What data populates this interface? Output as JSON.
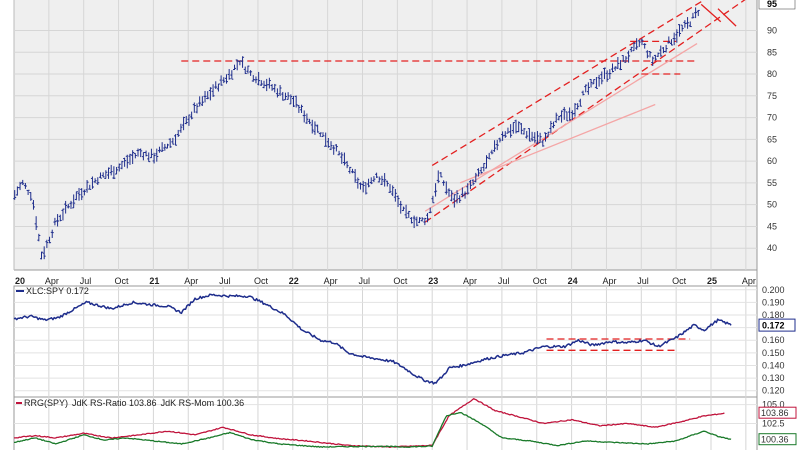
{
  "chart_data": [
    {
      "type": "ohlc",
      "panel": "price",
      "ylim": [
        35,
        97
      ],
      "y_ticks": [
        40,
        45,
        50,
        55,
        60,
        65,
        70,
        75,
        80,
        85,
        90
      ],
      "last_value_label": "95",
      "x_axis": {
        "labels": [
          "20",
          "Apr",
          "Jul",
          "Oct",
          "21",
          "Apr",
          "Jul",
          "Oct",
          "22",
          "Apr",
          "Jul",
          "Oct",
          "23",
          "Apr",
          "Jul",
          "Oct",
          "24",
          "Apr",
          "Jul",
          "Oct",
          "25",
          "Apr"
        ],
        "positions": [
          2020.0,
          2020.25,
          2020.5,
          2020.75,
          2021.0,
          2021.25,
          2021.5,
          2021.75,
          2022.0,
          2022.25,
          2022.5,
          2022.75,
          2023.0,
          2023.25,
          2023.5,
          2023.75,
          2024.0,
          2024.25,
          2024.5,
          2024.75,
          2025.0,
          2025.25
        ],
        "bold": [
          "20",
          "21",
          "22",
          "23",
          "24",
          "25"
        ],
        "range": [
          2020.0,
          2025.33
        ]
      },
      "series": [
        {
          "kind": "price",
          "color": "#1e2d8c",
          "points": [
            [
              2020.0,
              52.0
            ],
            [
              2020.06,
              55.0
            ],
            [
              2020.13,
              52.0
            ],
            [
              2020.2,
              38.0
            ],
            [
              2020.3,
              46.0
            ],
            [
              2020.45,
              52.0
            ],
            [
              2020.6,
              56.0
            ],
            [
              2020.75,
              58.5
            ],
            [
              2020.9,
              62.0
            ],
            [
              2021.0,
              61.0
            ],
            [
              2021.15,
              65.0
            ],
            [
              2021.3,
              72.0
            ],
            [
              2021.45,
              77.0
            ],
            [
              2021.55,
              80.0
            ],
            [
              2021.62,
              83.0
            ],
            [
              2021.7,
              80.0
            ],
            [
              2021.85,
              77.0
            ],
            [
              2022.0,
              74.0
            ],
            [
              2022.1,
              70.0
            ],
            [
              2022.2,
              66.5
            ],
            [
              2022.3,
              63.0
            ],
            [
              2022.4,
              58.5
            ],
            [
              2022.5,
              53.5
            ],
            [
              2022.6,
              57.0
            ],
            [
              2022.7,
              54.0
            ],
            [
              2022.8,
              48.0
            ],
            [
              2022.9,
              46.0
            ],
            [
              2022.97,
              47.0
            ],
            [
              2023.05,
              57.0
            ],
            [
              2023.15,
              51.0
            ],
            [
              2023.25,
              53.0
            ],
            [
              2023.4,
              60.0
            ],
            [
              2023.5,
              66.0
            ],
            [
              2023.6,
              68.0
            ],
            [
              2023.7,
              66.0
            ],
            [
              2023.8,
              64.5
            ],
            [
              2023.9,
              70.0
            ],
            [
              2024.0,
              71.0
            ],
            [
              2024.1,
              76.0
            ],
            [
              2024.2,
              79.0
            ],
            [
              2024.3,
              81.0
            ],
            [
              2024.4,
              84.0
            ],
            [
              2024.5,
              87.5
            ],
            [
              2024.58,
              83.0
            ],
            [
              2024.65,
              85.5
            ],
            [
              2024.75,
              89.0
            ],
            [
              2024.85,
              92.0
            ],
            [
              2024.92,
              95.0
            ]
          ]
        }
      ],
      "annotations": [
        {
          "kind": "hline",
          "y": 83.0,
          "x_from": 2021.2,
          "x_to": 2024.9,
          "color": "#e32020",
          "style": "dashed"
        },
        {
          "kind": "trendline",
          "from": [
            2022.95,
            46.0
          ],
          "to": [
            2025.33,
            99.0
          ],
          "color": "#e32020",
          "style": "dashed"
        },
        {
          "kind": "trendline",
          "from": [
            2023.0,
            59.0
          ],
          "to": [
            2024.95,
            97.0
          ],
          "color": "#e32020",
          "style": "dashed"
        },
        {
          "kind": "trendline",
          "from": [
            2022.95,
            48.5
          ],
          "to": [
            2024.9,
            87.0
          ],
          "color": "#f4a6a6",
          "style": "solid"
        },
        {
          "kind": "trendline",
          "from": [
            2023.2,
            55.0
          ],
          "to": [
            2024.6,
            73.0
          ],
          "color": "#f4a6a6",
          "style": "solid"
        },
        {
          "kind": "hline",
          "y": 87.5,
          "x_from": 2024.42,
          "x_to": 2024.75,
          "color": "#e32020",
          "style": "dashed"
        },
        {
          "kind": "hline",
          "y": 80.0,
          "x_from": 2024.5,
          "x_to": 2024.78,
          "color": "#e32020",
          "style": "dashed"
        },
        {
          "kind": "trendline",
          "from": [
            2024.93,
            96.0
          ],
          "to": [
            2025.07,
            92.0
          ],
          "color": "#e32020",
          "style": "solid"
        },
        {
          "kind": "trendline",
          "from": [
            2025.05,
            95.0
          ],
          "to": [
            2025.18,
            91.0
          ],
          "color": "#e32020",
          "style": "solid"
        }
      ]
    },
    {
      "type": "line",
      "panel": "relative_strength",
      "legend": "XLC:SPY 0.172",
      "ylim": [
        0.115,
        0.203
      ],
      "y_ticks": [
        0.12,
        0.13,
        0.14,
        0.15,
        0.16,
        0.17,
        0.18,
        0.19,
        0.2
      ],
      "y_tick_labels": [
        "0.120",
        "0.130",
        "0.140",
        "0.150",
        "0.160",
        "",
        "0.180",
        "0.190",
        "0.200"
      ],
      "last_value_label": "0.172",
      "series": [
        {
          "name": "XLC:SPY",
          "color": "#1e2d8c",
          "points": [
            [
              2020.0,
              0.177
            ],
            [
              2020.12,
              0.179
            ],
            [
              2020.22,
              0.176
            ],
            [
              2020.32,
              0.178
            ],
            [
              2020.52,
              0.19
            ],
            [
              2020.7,
              0.185
            ],
            [
              2020.85,
              0.19
            ],
            [
              2021.0,
              0.188
            ],
            [
              2021.1,
              0.187
            ],
            [
              2021.2,
              0.182
            ],
            [
              2021.3,
              0.193
            ],
            [
              2021.42,
              0.196
            ],
            [
              2021.55,
              0.195
            ],
            [
              2021.68,
              0.195
            ],
            [
              2021.8,
              0.189
            ],
            [
              2021.95,
              0.18
            ],
            [
              2022.07,
              0.168
            ],
            [
              2022.2,
              0.16
            ],
            [
              2022.3,
              0.158
            ],
            [
              2022.4,
              0.15
            ],
            [
              2022.5,
              0.147
            ],
            [
              2022.62,
              0.145
            ],
            [
              2022.72,
              0.143
            ],
            [
              2022.8,
              0.138
            ],
            [
              2022.88,
              0.132
            ],
            [
              2022.95,
              0.128
            ],
            [
              2023.02,
              0.126
            ],
            [
              2023.08,
              0.132
            ],
            [
              2023.12,
              0.138
            ],
            [
              2023.22,
              0.14
            ],
            [
              2023.38,
              0.145
            ],
            [
              2023.52,
              0.148
            ],
            [
              2023.65,
              0.15
            ],
            [
              2023.8,
              0.155
            ],
            [
              2023.95,
              0.155
            ],
            [
              2024.05,
              0.16
            ],
            [
              2024.15,
              0.156
            ],
            [
              2024.28,
              0.159
            ],
            [
              2024.4,
              0.158
            ],
            [
              2024.52,
              0.16
            ],
            [
              2024.62,
              0.155
            ],
            [
              2024.75,
              0.162
            ],
            [
              2024.88,
              0.172
            ],
            [
              2024.95,
              0.168
            ],
            [
              2025.05,
              0.176
            ],
            [
              2025.15,
              0.172
            ]
          ]
        }
      ],
      "annotations": [
        {
          "kind": "hline",
          "y": 0.161,
          "x_from": 2023.82,
          "x_to": 2024.85,
          "color": "#e32020",
          "style": "dashed"
        },
        {
          "kind": "hline",
          "y": 0.152,
          "x_from": 2023.82,
          "x_to": 2024.75,
          "color": "#e32020",
          "style": "dashed"
        }
      ]
    },
    {
      "type": "line",
      "panel": "rrg",
      "legend": [
        {
          "text": "RRG(SPY)",
          "color": "#222222"
        },
        {
          "text": "JdK RS-Ratio 103.86",
          "color": "#c0143c"
        },
        {
          "text": "JdK RS-Mom 100.36",
          "color": "#1a7a2a"
        }
      ],
      "ylim": [
        99.0,
        106.0
      ],
      "y_ticks": [
        102.5,
        105.0
      ],
      "y_tick_labels": [
        "102.5",
        "105.0"
      ],
      "last_value_labels": [
        {
          "text": "103.86",
          "y": 103.86,
          "color": "#c0143c"
        },
        {
          "text": "100.36",
          "y": 100.36,
          "color": "#1a7a2a"
        }
      ],
      "series": [
        {
          "name": "JdK RS-Ratio",
          "color": "#c0143c",
          "points": [
            [
              2020.0,
              100.6
            ],
            [
              2020.15,
              100.9
            ],
            [
              2020.3,
              100.6
            ],
            [
              2020.5,
              101.2
            ],
            [
              2020.7,
              100.6
            ],
            [
              2020.9,
              101.0
            ],
            [
              2021.1,
              101.5
            ],
            [
              2021.3,
              101.0
            ],
            [
              2021.5,
              102.0
            ],
            [
              2021.7,
              101.0
            ],
            [
              2021.9,
              100.5
            ],
            [
              2022.1,
              100.2
            ],
            [
              2022.4,
              99.6
            ],
            [
              2022.7,
              99.4
            ],
            [
              2023.0,
              99.6
            ],
            [
              2023.12,
              103.5
            ],
            [
              2023.3,
              105.8
            ],
            [
              2023.45,
              104.2
            ],
            [
              2023.6,
              103.5
            ],
            [
              2023.8,
              102.5
            ],
            [
              2024.0,
              103.0
            ],
            [
              2024.2,
              102.2
            ],
            [
              2024.4,
              102.5
            ],
            [
              2024.6,
              102.0
            ],
            [
              2024.8,
              102.8
            ],
            [
              2024.95,
              103.5
            ],
            [
              2025.1,
              103.86
            ]
          ]
        },
        {
          "name": "JdK RS-Mom",
          "color": "#1a7a2a",
          "points": [
            [
              2020.0,
              100.0
            ],
            [
              2020.15,
              100.6
            ],
            [
              2020.3,
              99.8
            ],
            [
              2020.5,
              101.0
            ],
            [
              2020.65,
              100.3
            ],
            [
              2020.8,
              100.6
            ],
            [
              2021.0,
              100.2
            ],
            [
              2021.2,
              99.8
            ],
            [
              2021.4,
              100.6
            ],
            [
              2021.55,
              101.3
            ],
            [
              2021.7,
              100.4
            ],
            [
              2021.9,
              99.8
            ],
            [
              2022.2,
              99.4
            ],
            [
              2022.6,
              99.5
            ],
            [
              2022.8,
              99.4
            ],
            [
              2023.0,
              99.5
            ],
            [
              2023.1,
              103.5
            ],
            [
              2023.2,
              104.0
            ],
            [
              2023.35,
              102.5
            ],
            [
              2023.5,
              100.6
            ],
            [
              2023.7,
              100.2
            ],
            [
              2023.9,
              99.6
            ],
            [
              2024.1,
              100.2
            ],
            [
              2024.3,
              100.0
            ],
            [
              2024.55,
              99.8
            ],
            [
              2024.75,
              100.2
            ],
            [
              2024.95,
              101.5
            ],
            [
              2025.05,
              100.8
            ],
            [
              2025.15,
              100.36
            ]
          ]
        }
      ]
    }
  ]
}
